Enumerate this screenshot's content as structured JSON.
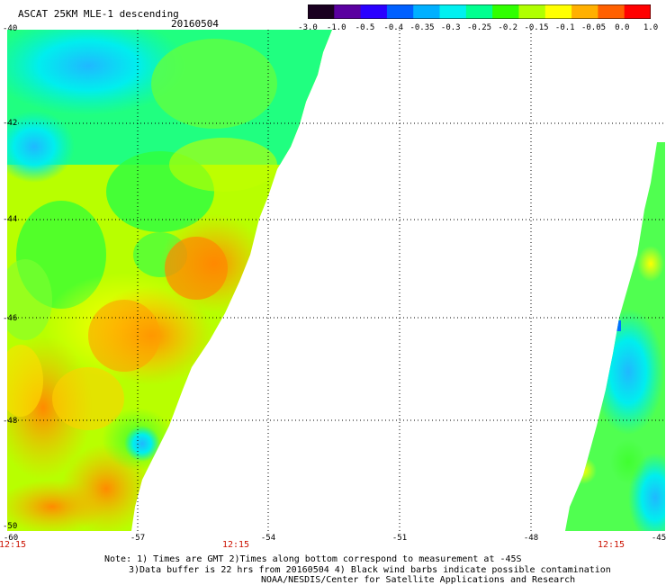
{
  "header": {
    "title": "ASCAT 25KM MLE-1 descending",
    "date": "20160504"
  },
  "colorbar": {
    "labels": [
      "-3.0",
      "-1.0",
      "-0.5",
      "-0.4",
      "-0.35",
      "-0.3",
      "-0.25",
      "-0.2",
      "-0.15",
      "-0.1",
      "-0.05",
      "0.0",
      "1.0"
    ],
    "colors": [
      "#1a0020",
      "#5a00a0",
      "#2a00ff",
      "#0060ff",
      "#00b0ff",
      "#00f0f0",
      "#00ff90",
      "#30ff00",
      "#b0ff00",
      "#ffff00",
      "#ffb000",
      "#ff6000",
      "#ff0000"
    ]
  },
  "axes": {
    "y_labels": [
      "-40",
      "-42",
      "-44",
      "-46",
      "-48",
      "-50"
    ],
    "x_labels": [
      "-60",
      "-57",
      "-54",
      "-51",
      "-48",
      "-45"
    ],
    "time_labels": [
      "12:15",
      "12:15",
      "12:15"
    ]
  },
  "notes": {
    "line1": "Note: 1) Times are GMT 2)Times along bottom correspond to measurement at -45S",
    "line2": "3)Data buffer is 22 hrs from 20160504 4) Black wind barbs indicate possible contamination",
    "line3": "NOAA/NESDIS/Center for Satellite Applications and Research"
  }
}
